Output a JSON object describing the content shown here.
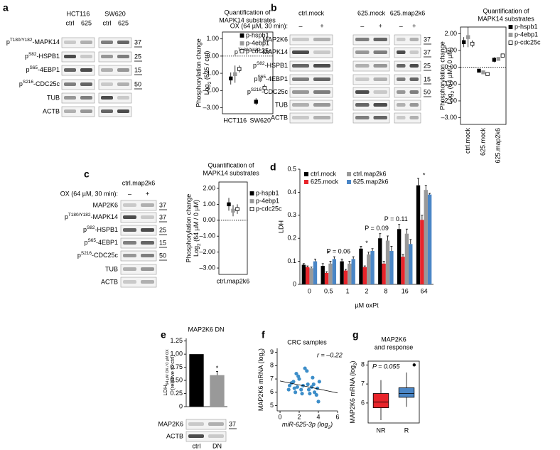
{
  "blots": [
    {
      "panel": "a",
      "groups": [
        {
          "name": "HCT116",
          "lanes": [
            "ctrl",
            "625"
          ]
        },
        {
          "name": "SW620",
          "lanes": [
            "ctrl",
            "625"
          ]
        }
      ],
      "rows": [
        {
          "label": [
            "p",
            "T180/Y182",
            "-MAPK14"
          ],
          "mw": 37
        },
        {
          "label": [
            "p",
            "S82",
            "-HSPB1"
          ],
          "mw": 25
        },
        {
          "label": [
            "p",
            "S65",
            "-4EBP1"
          ],
          "mw": 15
        },
        {
          "label": [
            "p",
            "S216",
            "-CDC25c"
          ],
          "mw": 50
        },
        {
          "label": "TUB"
        },
        {
          "label": "ACTB"
        }
      ]
    },
    {
      "panel": "b",
      "treatment": "OX (64 µM, 30 min):",
      "groups": [
        {
          "name": "ctrl.mock",
          "color": "#000000",
          "lanes": [
            "–",
            "+"
          ]
        },
        {
          "name": "625.mock",
          "color": "#e8242a",
          "lanes": [
            "–",
            "+"
          ]
        },
        {
          "name": "625.map2k6",
          "color": "#4a86c6",
          "lanes": [
            "–",
            "+"
          ]
        }
      ],
      "rows": [
        {
          "label": "MAP2K6",
          "mw": 37
        },
        {
          "label": [
            "p",
            "T180/Y182",
            "-MAPK14"
          ],
          "mw": 37
        },
        {
          "label": [
            "p",
            "S82",
            "-HSPB1"
          ],
          "mw": 25
        },
        {
          "label": [
            "p",
            "S65",
            "-4EBP1"
          ],
          "mw": 15
        },
        {
          "label": [
            "p",
            "S216",
            "-CDC25c"
          ],
          "mw": 50
        },
        {
          "label": "TUB"
        },
        {
          "label": "ACTB"
        }
      ]
    },
    {
      "panel": "c",
      "treatment": "OX (64 µM, 30 min):",
      "groups": [
        {
          "name": "ctrl.map2k6",
          "lanes": [
            "–",
            "+"
          ]
        }
      ],
      "rows": [
        {
          "label": "MAP2K6",
          "mw": 37
        },
        {
          "label": [
            "p",
            "T180/Y182",
            "-MAPK14"
          ],
          "mw": 37
        },
        {
          "label": [
            "p",
            "S82",
            "-HSPB1"
          ],
          "mw": 25
        },
        {
          "label": [
            "p",
            "S65",
            "-4EBP1"
          ],
          "mw": 15
        },
        {
          "label": [
            "p",
            "S216",
            "-CDC25c"
          ],
          "mw": 50
        },
        {
          "label": "TUB"
        },
        {
          "label": "ACTB"
        }
      ]
    },
    {
      "rows": [
        {
          "label": "MAP2K6",
          "mw": 37
        },
        {
          "label": "ACTB"
        }
      ]
    }
  ],
  "chart_data": [
    {
      "type": "dot",
      "title": [
        "Quantification of",
        "MAPK14 substrates"
      ],
      "ylabel": "Phosphorylation change",
      "ylabel2": [
        "Log",
        "2",
        " (625 / ctrl)"
      ],
      "categories": [
        "HCT116",
        "SW620"
      ],
      "series": [
        {
          "name": "p-hspb1",
          "color": "#000000",
          "filled": true,
          "values": [
            -1.3,
            -2.65
          ],
          "errors": [
            0.35,
            0.2
          ]
        },
        {
          "name": "p-4ebp1",
          "color": "#999999",
          "filled": true,
          "values": [
            -1.05,
            -1.35
          ],
          "errors": [
            0.5,
            0.15
          ]
        },
        {
          "name": "p-cdc25c",
          "color": "#000000",
          "filled": false,
          "values": [
            -0.75,
            -1.85
          ],
          "errors": [
            0.2,
            0.2
          ]
        }
      ],
      "ylim": [
        -3.35,
        1.4
      ],
      "yticks": [
        {
          "value": 1,
          "label": "1.00"
        },
        {
          "value": 0,
          "label": "0.00"
        },
        {
          "value": -1,
          "label": "–1.00"
        },
        {
          "value": -2,
          "label": "–2.00"
        },
        {
          "value": -3,
          "label": "–3.00"
        }
      ],
      "reference_line": 0
    },
    {
      "type": "dot",
      "title": [
        "Quantification of",
        "MAPK14 substrates"
      ],
      "ylabel": "Phosphorylation change",
      "ylabel2": [
        "Log",
        "2",
        " (64 µM / 0 µM)"
      ],
      "categories": [
        "ctrl.mock",
        "625.mock",
        "625.map2k6"
      ],
      "category_colors": [
        "#000000",
        "#e8242a",
        "#4a86c6"
      ],
      "series": [
        {
          "name": "p-hspb1",
          "color": "#000000",
          "filled": true,
          "values": [
            1.5,
            -0.2,
            0.45
          ],
          "errors": [
            0.3,
            0.05,
            0.15
          ]
        },
        {
          "name": "p-4ebp1",
          "color": "#999999",
          "filled": true,
          "values": [
            1.8,
            -0.3,
            0.5
          ],
          "errors": [
            0.6,
            0.1,
            0.1
          ]
        },
        {
          "name": "p-cdc25c",
          "color": "#000000",
          "filled": false,
          "values": [
            1.4,
            -0.4,
            0.7
          ],
          "errors": [
            0.2,
            0.05,
            0.05
          ]
        }
      ],
      "ylim": [
        -3.4,
        2.4
      ],
      "yticks": [
        {
          "value": 2,
          "label": "2.00"
        },
        {
          "value": 1,
          "label": "1.00"
        },
        {
          "value": 0,
          "label": "0.00"
        },
        {
          "value": -1,
          "label": "–1.00"
        },
        {
          "value": -2,
          "label": "–2.00"
        },
        {
          "value": -3,
          "label": "–3.00"
        }
      ],
      "reference_line": 0
    },
    {
      "type": "dot",
      "title": [
        "Quantification of",
        "MAPK14 substrates"
      ],
      "ylabel": "Phosphorylation change",
      "ylabel2": [
        "Log",
        "2",
        " (64 µM / 0 µM)"
      ],
      "categories": [
        "ctrl.map2k6"
      ],
      "series": [
        {
          "name": "p-hspb1",
          "color": "#000000",
          "filled": true,
          "values": [
            1.0
          ],
          "errors": [
            0.4
          ]
        },
        {
          "name": "p-4ebp1",
          "color": "#999999",
          "filled": true,
          "values": [
            0.6
          ],
          "errors": [
            0.35
          ]
        },
        {
          "name": "p-cdc25c",
          "color": "#000000",
          "filled": false,
          "values": [
            0.7
          ],
          "errors": [
            0.3
          ]
        }
      ],
      "ylim": [
        -3.4,
        2.4
      ],
      "yticks": [
        {
          "value": 2,
          "label": "2.00"
        },
        {
          "value": 1,
          "label": "1.00"
        },
        {
          "value": 0,
          "label": "0.00"
        },
        {
          "value": -1,
          "label": "–1.00"
        },
        {
          "value": -2,
          "label": "–2.00"
        },
        {
          "value": -3,
          "label": "–3.00"
        }
      ],
      "reference_line": 0
    },
    {
      "type": "bar",
      "panel": "d",
      "ylabel": "LDH",
      "xlabel": "µM oxPt",
      "categories": [
        "0",
        "0.5",
        "1",
        "2",
        "8",
        "16",
        "64"
      ],
      "series": [
        {
          "name": "ctrl.mock",
          "color": "#000000",
          "values": [
            0.085,
            0.08,
            0.1,
            0.155,
            0.2,
            0.24,
            0.43
          ],
          "errors": [
            0.005,
            0.01,
            0.01,
            0.01,
            0.02,
            0.02,
            0.03
          ]
        },
        {
          "name": "625.mock",
          "color": "#e8242a",
          "values": [
            0.075,
            0.05,
            0.06,
            0.075,
            0.09,
            0.12,
            0.28
          ],
          "errors": [
            0.005,
            0.005,
            0.005,
            0.005,
            0.01,
            0.01,
            0.02
          ]
        },
        {
          "name": "ctrl.map2k6",
          "color": "#999999",
          "values": [
            0.07,
            0.09,
            0.09,
            0.13,
            0.19,
            0.22,
            0.41
          ],
          "errors": [
            0.005,
            0.01,
            0.01,
            0.01,
            0.02,
            0.02,
            0.02
          ]
        },
        {
          "name": "625.map2k6",
          "color": "#4a86c6",
          "values": [
            0.1,
            0.11,
            0.11,
            0.145,
            0.145,
            0.175,
            0.39
          ],
          "errors": [
            0.01,
            0.01,
            0.01,
            0.01,
            0.02,
            0.02,
            0.005
          ]
        }
      ],
      "annotations": [
        {
          "text": "*",
          "category": "0.5"
        },
        {
          "text": "P = 0.06",
          "category": "1"
        },
        {
          "text": "*",
          "category": "2"
        },
        {
          "text": "P = 0.09",
          "category": "8"
        },
        {
          "text": "P = 0.11",
          "category": "16"
        },
        {
          "text": "*",
          "category": "64"
        }
      ],
      "ylim": [
        0,
        0.5
      ],
      "yticks": [
        0,
        0.1,
        0.2,
        0.3,
        0.4,
        0.5
      ]
    },
    {
      "type": "bar",
      "panel": "e",
      "title": "MAP2K6 DN",
      "ylabel": [
        "LDH",
        "64 µM OX / 0 µM OX"
      ],
      "ylabel2": "(relative to ctrl)",
      "categories": [
        "ctrl",
        "DN"
      ],
      "values": [
        1.0,
        0.6
      ],
      "errors": [
        null,
        0.07
      ],
      "colors": [
        "#000000",
        "#999999"
      ],
      "annotations": [
        {
          "text": "*",
          "category": "DN"
        }
      ],
      "ylim": [
        0,
        1.3
      ],
      "yticks": [
        0,
        0.25,
        {
          "value": 0.5,
          "label": "0.50"
        },
        0.75,
        {
          "value": 1,
          "label": "1.00"
        },
        1.25
      ]
    },
    {
      "type": "scatter",
      "panel": "f",
      "title": "CRC samples",
      "annotation": "r = –0.22",
      "xlabel": [
        "miR-625-3p (log",
        "2",
        ")"
      ],
      "ylabel": [
        "MAP2K6 mRNA (log",
        "2",
        ")"
      ],
      "color": "#3d8ec9",
      "x": [
        0.9,
        1.0,
        1.2,
        1.4,
        1.5,
        1.6,
        1.7,
        1.8,
        1.9,
        2.0,
        2.2,
        2.3,
        2.4,
        2.6,
        2.8,
        2.9,
        3.0,
        3.1,
        3.3,
        3.4,
        3.5,
        3.6,
        3.8,
        3.9,
        4.0,
        4.1
      ],
      "y": [
        6.2,
        6.5,
        6.7,
        6.8,
        6.3,
        6.0,
        7.4,
        6.4,
        7.2,
        7.0,
        6.2,
        5.9,
        6.5,
        7.8,
        7.6,
        6.6,
        6.2,
        5.9,
        6.4,
        7.1,
        6.6,
        6.0,
        5.8,
        6.3,
        5.3,
        6.8
      ],
      "fit": {
        "x": [
          0,
          6
        ],
        "y": [
          6.85,
          5.95
        ]
      },
      "xlim": [
        -0.3,
        6
      ],
      "xticks": [
        0,
        2,
        4,
        6
      ],
      "ylim": [
        4.6,
        9.3
      ],
      "yticks": [
        5,
        6,
        7,
        8,
        9
      ]
    },
    {
      "type": "box",
      "panel": "g",
      "title": [
        "MAP2K6",
        "and response"
      ],
      "annotation": "P = 0.055",
      "ylabel": [
        "MAP2K6 mRNA (log",
        "2",
        ")"
      ],
      "categories": [
        "NR",
        "R"
      ],
      "colors": [
        "#e8242a",
        "#4a86c6"
      ],
      "whisker_low": [
        5.1,
        5.8
      ],
      "q1": [
        5.75,
        6.3
      ],
      "median": [
        6.05,
        6.5
      ],
      "q3": [
        6.5,
        6.8
      ],
      "whisker_high": [
        7.2,
        7.6
      ],
      "outliers": [
        [],
        [
          8.0
        ]
      ],
      "ylim": [
        4.95,
        8.2
      ],
      "yticks": [
        6,
        7,
        8
      ]
    }
  ]
}
